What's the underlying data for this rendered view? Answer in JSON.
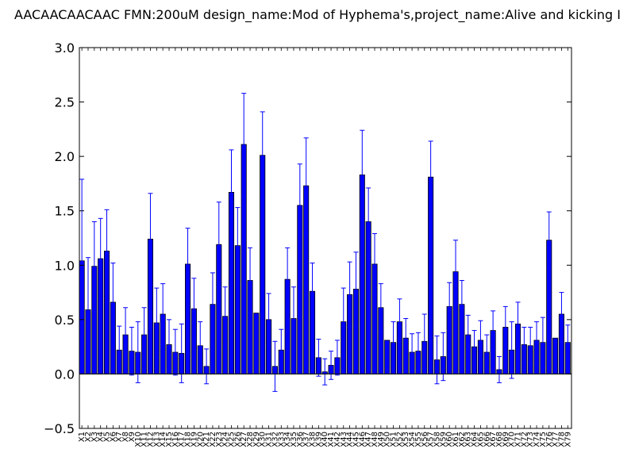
{
  "chart_data": {
    "type": "bar",
    "title": "AACAACAACAAC  FMN:200uM  design_name:Mod of Hyphema's,project_name:Alive and kicking I",
    "xlabel": "",
    "ylabel": "",
    "ylim": [
      -0.5,
      3.0
    ],
    "yticks": [
      "−0.5",
      "0.0",
      "0.5",
      "1.0",
      "1.5",
      "2.0",
      "2.5",
      "3.0"
    ],
    "ytick_values": [
      -0.5,
      0.0,
      0.5,
      1.0,
      1.5,
      2.0,
      2.5,
      3.0
    ],
    "grid": false,
    "colors": {
      "bar": "#0000ff",
      "error": "#0000ff",
      "axis": "#000000"
    },
    "categories": [
      "X1",
      "X2",
      "X3",
      "X4",
      "X5",
      "X6",
      "X7",
      "X8",
      "X9",
      "X10",
      "X11",
      "X12",
      "X13",
      "X14",
      "X15",
      "X16",
      "X17",
      "X18",
      "X19",
      "X20",
      "X21",
      "X22",
      "X23",
      "X24",
      "X25",
      "X26",
      "X27",
      "X28",
      "X29",
      "X30",
      "X31",
      "X32",
      "X33",
      "X34",
      "X35",
      "X36",
      "X37",
      "X38",
      "X39",
      "X40",
      "X41",
      "X42",
      "X43",
      "X44",
      "X45",
      "X46",
      "X47",
      "X48",
      "X49",
      "X50",
      "X51",
      "X52",
      "X53",
      "X54",
      "X55",
      "X56",
      "X57",
      "X58",
      "X59",
      "X60",
      "X61",
      "X62",
      "X63",
      "X64",
      "X65",
      "X66",
      "X67",
      "X68",
      "X69",
      "X70",
      "X71",
      "X72",
      "X73",
      "X74",
      "X75",
      "X76",
      "X77",
      "X78",
      "X79"
    ],
    "values": [
      1.04,
      0.59,
      0.99,
      1.06,
      1.13,
      0.66,
      0.22,
      0.36,
      0.21,
      0.2,
      0.36,
      1.24,
      0.47,
      0.55,
      0.27,
      0.2,
      0.19,
      1.01,
      0.6,
      0.26,
      0.07,
      0.64,
      1.19,
      0.53,
      1.67,
      1.18,
      2.11,
      0.86,
      0.56,
      2.01,
      0.5,
      0.07,
      0.22,
      0.87,
      0.51,
      1.55,
      1.73,
      0.76,
      0.15,
      0.02,
      0.08,
      0.15,
      0.48,
      0.73,
      0.78,
      1.83,
      1.4,
      1.01,
      0.61,
      0.31,
      0.29,
      0.48,
      0.33,
      0.2,
      0.21,
      0.3,
      1.81,
      0.13,
      0.16,
      0.62,
      0.94,
      0.64,
      0.36,
      0.25,
      0.31,
      0.2,
      0.4,
      0.04,
      0.43,
      0.22,
      0.46,
      0.27,
      0.26,
      0.31,
      0.29,
      1.23,
      0.33,
      0.55,
      0.29
    ],
    "errors": [
      0.75,
      0.48,
      0.41,
      0.37,
      0.38,
      0.36,
      0.22,
      0.25,
      0.22,
      0.28,
      0.25,
      0.42,
      0.32,
      0.28,
      0.23,
      0.21,
      0.27,
      0.33,
      0.28,
      0.22,
      0.16,
      0.29,
      0.39,
      0.27,
      0.39,
      0.35,
      0.47,
      0.3,
      0.0,
      0.4,
      0.24,
      0.23,
      0.19,
      0.29,
      0.29,
      0.38,
      0.44,
      0.26,
      0.17,
      0.12,
      0.13,
      0.16,
      0.31,
      0.3,
      0.34,
      0.41,
      0.31,
      0.28,
      0.22,
      0.0,
      0.19,
      0.21,
      0.18,
      0.17,
      0.17,
      0.25,
      0.33,
      0.22,
      0.22,
      0.22,
      0.29,
      0.22,
      0.18,
      0.15,
      0.18,
      0.16,
      0.18,
      0.12,
      0.19,
      0.26,
      0.2,
      0.16,
      0.17,
      0.17,
      0.23,
      0.26,
      0.0,
      0.2,
      0.16
    ]
  }
}
